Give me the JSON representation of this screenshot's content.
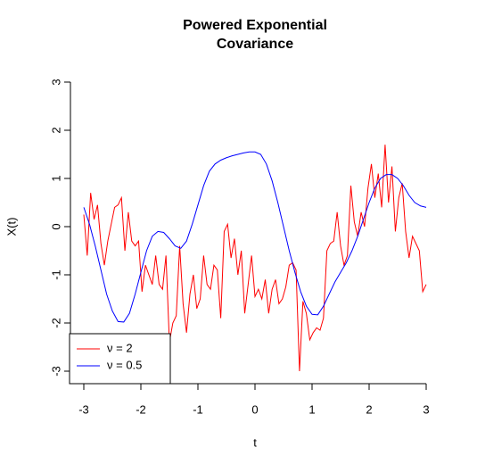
{
  "chart_data": {
    "type": "line",
    "title": [
      "Powered Exponential",
      "Covariance"
    ],
    "x_label": "t",
    "y_label": "X(t)",
    "xlim": [
      -3,
      3
    ],
    "xticks": [
      -3,
      -2,
      -1,
      0,
      1,
      2,
      3
    ],
    "ylim": [
      -3,
      3
    ],
    "yticks": [
      -3,
      -2,
      -1,
      0,
      1,
      2,
      3
    ],
    "legend": "bottomleft",
    "series": [
      {
        "name": "ν = 2",
        "color": "#ff0000",
        "x": [
          -3,
          -2.94,
          -2.88,
          -2.82,
          -2.76,
          -2.7,
          -2.64,
          -2.58,
          -2.52,
          -2.46,
          -2.4,
          -2.34,
          -2.28,
          -2.22,
          -2.16,
          -2.1,
          -2.04,
          -1.98,
          -1.92,
          -1.86,
          -1.8,
          -1.74,
          -1.68,
          -1.62,
          -1.56,
          -1.5,
          -1.44,
          -1.38,
          -1.32,
          -1.26,
          -1.2,
          -1.14,
          -1.08,
          -1.02,
          -0.96,
          -0.9,
          -0.84,
          -0.78,
          -0.72,
          -0.66,
          -0.6,
          -0.54,
          -0.48,
          -0.42,
          -0.36,
          -0.3,
          -0.24,
          -0.18,
          -0.12,
          -0.06,
          0,
          0.06,
          0.12,
          0.18,
          0.24,
          0.3,
          0.36,
          0.42,
          0.48,
          0.54,
          0.6,
          0.66,
          0.72,
          0.78,
          0.84,
          0.9,
          0.96,
          1.02,
          1.08,
          1.14,
          1.2,
          1.26,
          1.32,
          1.38,
          1.44,
          1.5,
          1.56,
          1.62,
          1.68,
          1.74,
          1.8,
          1.86,
          1.92,
          1.98,
          2.04,
          2.1,
          2.16,
          2.22,
          2.28,
          2.34,
          2.4,
          2.46,
          2.52,
          2.58,
          2.64,
          2.7,
          2.76,
          2.82,
          2.88,
          2.94,
          3
        ],
        "values": [
          0.25,
          -0.6,
          0.7,
          0.15,
          0.45,
          -0.35,
          -0.8,
          -0.3,
          0.05,
          0.4,
          0.45,
          0.6,
          -0.5,
          0.3,
          -0.3,
          -0.4,
          -0.3,
          -1.35,
          -0.8,
          -1.0,
          -1.2,
          -0.6,
          -1.2,
          -1.3,
          -0.6,
          -2.4,
          -2.0,
          -1.85,
          -0.4,
          -1.6,
          -2.2,
          -1.4,
          -1.0,
          -1.7,
          -1.5,
          -0.6,
          -1.2,
          -1.3,
          -0.8,
          -0.9,
          -1.9,
          -0.1,
          0.05,
          -0.65,
          -0.25,
          -1.0,
          -0.5,
          -1.8,
          -1.2,
          -0.6,
          -1.45,
          -1.3,
          -1.5,
          -1.1,
          -1.8,
          -1.3,
          -1.1,
          -1.6,
          -1.5,
          -1.25,
          -0.8,
          -0.75,
          -0.9,
          -3.0,
          -1.55,
          -1.8,
          -2.35,
          -2.2,
          -2.1,
          -2.15,
          -1.9,
          -0.5,
          -0.35,
          -0.3,
          0.3,
          -0.4,
          -0.8,
          -0.6,
          0.85,
          0.1,
          -0.2,
          0.3,
          0.0,
          0.8,
          1.3,
          0.6,
          1.1,
          0.4,
          1.7,
          0.5,
          1.25,
          -0.1,
          0.6,
          0.9,
          -0.1,
          -0.65,
          -0.2,
          -0.35,
          -0.5,
          -1.35,
          -1.2
        ]
      },
      {
        "name": "ν = 0.5",
        "color": "#0000ff",
        "x": [
          -3,
          -2.9,
          -2.8,
          -2.7,
          -2.6,
          -2.5,
          -2.4,
          -2.3,
          -2.2,
          -2.1,
          -2,
          -1.9,
          -1.8,
          -1.7,
          -1.6,
          -1.5,
          -1.4,
          -1.3,
          -1.2,
          -1.1,
          -1,
          -0.9,
          -0.8,
          -0.7,
          -0.6,
          -0.5,
          -0.4,
          -0.3,
          -0.2,
          -0.1,
          0,
          0.1,
          0.2,
          0.3,
          0.4,
          0.5,
          0.6,
          0.7,
          0.8,
          0.9,
          1,
          1.1,
          1.2,
          1.3,
          1.4,
          1.5,
          1.6,
          1.7,
          1.8,
          1.9,
          2,
          2.1,
          2.2,
          2.3,
          2.4,
          2.5,
          2.6,
          2.7,
          2.8,
          2.9,
          3
        ],
        "values": [
          0.4,
          0.05,
          -0.4,
          -0.9,
          -1.4,
          -1.75,
          -1.97,
          -1.98,
          -1.8,
          -1.4,
          -0.95,
          -0.5,
          -0.2,
          -0.1,
          -0.12,
          -0.25,
          -0.4,
          -0.45,
          -0.3,
          0.05,
          0.45,
          0.85,
          1.15,
          1.3,
          1.38,
          1.43,
          1.47,
          1.5,
          1.53,
          1.55,
          1.55,
          1.5,
          1.3,
          0.95,
          0.5,
          0,
          -0.5,
          -0.95,
          -1.35,
          -1.65,
          -1.82,
          -1.83,
          -1.65,
          -1.4,
          -1.15,
          -0.95,
          -0.75,
          -0.5,
          -0.2,
          0.15,
          0.5,
          0.8,
          1.0,
          1.08,
          1.08,
          1.0,
          0.85,
          0.65,
          0.5,
          0.43,
          0.4
        ]
      }
    ]
  }
}
